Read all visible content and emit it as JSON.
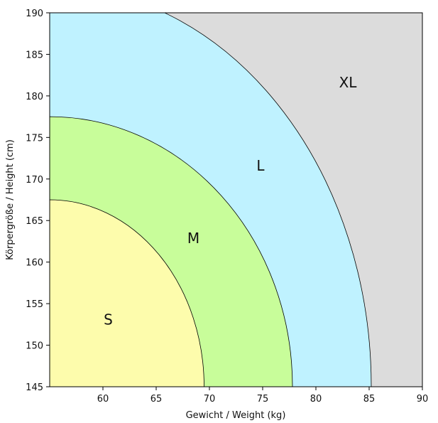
{
  "chart_data": {
    "type": "area",
    "xlabel": "Gewicht / Weight (kg)",
    "ylabel": "Körpergröße / Height (cm)",
    "xlim": [
      55,
      90
    ],
    "ylim": [
      145,
      190
    ],
    "x_ticks": [
      "60",
      "65",
      "70",
      "75",
      "80",
      "85",
      "90"
    ],
    "y_ticks": [
      "145",
      "150",
      "155",
      "160",
      "165",
      "170",
      "175",
      "180",
      "185",
      "190"
    ],
    "grid": false,
    "regions": [
      {
        "name": "XL",
        "color": "#dcdcdc",
        "boundary_x_at_min_height": 90,
        "boundary_height_at_min_weight": 190,
        "label_at": [
          83,
          181
        ]
      },
      {
        "name": "L",
        "color": "#bff2ff",
        "boundary_x_at_min_height": 85.2,
        "boundary_height_at_min_weight": 190,
        "boundary_height_at_weight": [
          65.8,
          190
        ],
        "label_at": [
          74.8,
          171
        ]
      },
      {
        "name": "M",
        "color": "#c8fd9a",
        "boundary_x_at_min_height": 77.8,
        "boundary_height_at_min_weight": 177.5,
        "label_at": [
          68.5,
          162.3
        ]
      },
      {
        "name": "S",
        "color": "#fdfcac",
        "boundary_x_at_min_height": 69.5,
        "boundary_height_at_min_weight": 167.5,
        "label_at": [
          60.5,
          152.5
        ]
      }
    ]
  }
}
